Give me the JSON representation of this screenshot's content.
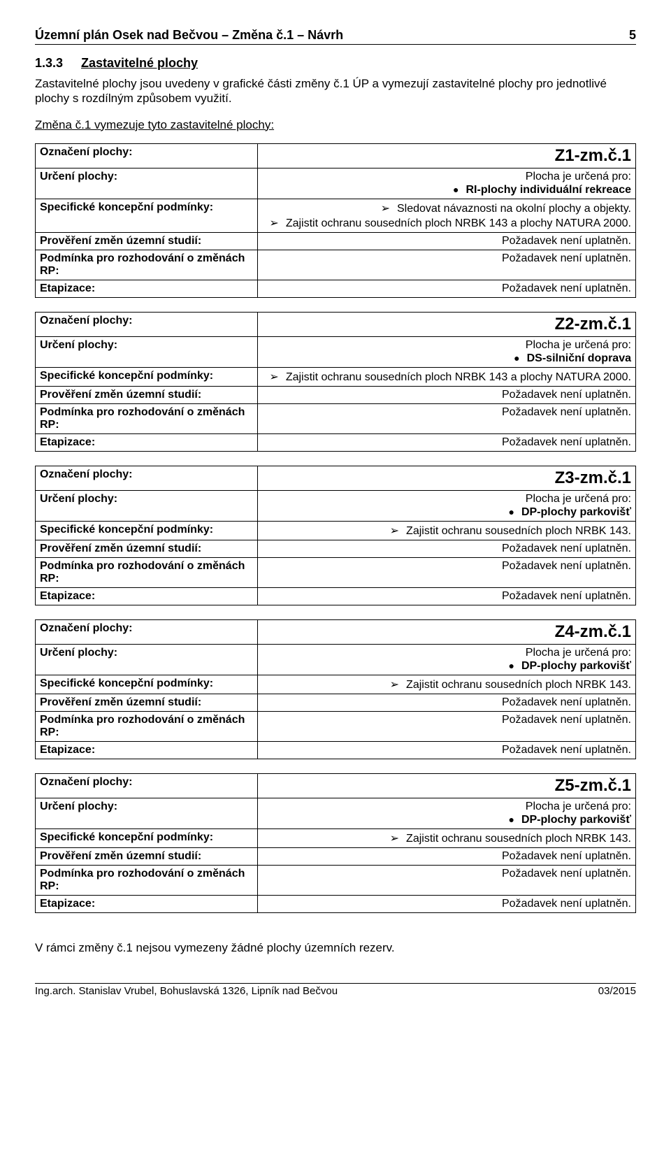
{
  "header": {
    "title": "Územní plán Osek nad Bečvou – Změna č.1 – Návrh",
    "page_number": "5"
  },
  "section": {
    "number": "1.3.3",
    "title": "Zastavitelné plochy"
  },
  "intro": "Zastavitelné plochy jsou uvedeny v grafické části změny č.1 ÚP a vymezují zastavitelné plochy pro jednotlivé plochy s rozdílným způsobem využití.",
  "subheading": "Změna č.1 vymezuje tyto zastavitelné plochy:",
  "plots": [
    {
      "code": "Z1-zm.č.1",
      "designation_label": "Označení plochy:",
      "use_label": "Určení plochy:",
      "use_intro": "Plocha je určená pro:",
      "use_bullets": [
        "RI-plochy individuální rekreace"
      ],
      "conditions_label": "Specifické koncepční podmínky:",
      "condition_arrows": [
        "Sledovat návaznosti na okolní plochy a objekty.",
        "Zajistit ochranu sousedních ploch NRBK 143 a plochy NATURA 2000."
      ],
      "study_label": "Prověření změn územní studií:",
      "study_value": "Požadavek není uplatněn.",
      "rp_label": "Podmínka pro rozhodování o změnách RP:",
      "rp_value": "Požadavek není uplatněn.",
      "phasing_label": "Etapizace:",
      "phasing_value": "Požadavek není uplatněn."
    },
    {
      "code": "Z2-zm.č.1",
      "designation_label": "Označení plochy:",
      "use_label": "Určení plochy:",
      "use_intro": "Plocha je určená pro:",
      "use_bullets": [
        "DS-silniční doprava"
      ],
      "conditions_label": "Specifické koncepční podmínky:",
      "condition_arrows": [
        "Zajistit ochranu sousedních ploch NRBK 143 a plochy NATURA 2000."
      ],
      "study_label": "Prověření změn územní studií:",
      "study_value": "Požadavek není uplatněn.",
      "rp_label": "Podmínka pro rozhodování o změnách RP:",
      "rp_value": "Požadavek není uplatněn.",
      "phasing_label": "Etapizace:",
      "phasing_value": "Požadavek není uplatněn."
    },
    {
      "code": "Z3-zm.č.1",
      "designation_label": "Označení plochy:",
      "use_label": "Určení plochy:",
      "use_intro": "Plocha je určená pro:",
      "use_bullets": [
        "DP-plochy parkovišť"
      ],
      "conditions_label": "Specifické koncepční podmínky:",
      "condition_arrows": [
        "Zajistit ochranu sousedních ploch NRBK 143."
      ],
      "study_label": "Prověření změn územní studií:",
      "study_value": "Požadavek není uplatněn.",
      "rp_label": "Podmínka pro rozhodování o změnách RP:",
      "rp_value": "Požadavek není uplatněn.",
      "phasing_label": "Etapizace:",
      "phasing_value": "Požadavek není uplatněn."
    },
    {
      "code": "Z4-zm.č.1",
      "designation_label": "Označení plochy:",
      "use_label": "Určení plochy:",
      "use_intro": "Plocha je určená pro:",
      "use_bullets": [
        "DP-plochy parkovišť"
      ],
      "conditions_label": "Specifické koncepční podmínky:",
      "condition_arrows": [
        "Zajistit ochranu sousedních ploch NRBK 143."
      ],
      "study_label": "Prověření změn územní studií:",
      "study_value": "Požadavek není uplatněn.",
      "rp_label": "Podmínka pro rozhodování o změnách RP:",
      "rp_value": "Požadavek není uplatněn.",
      "phasing_label": "Etapizace:",
      "phasing_value": "Požadavek není uplatněn."
    },
    {
      "code": "Z5-zm.č.1",
      "designation_label": "Označení plochy:",
      "use_label": "Určení plochy:",
      "use_intro": "Plocha je určená pro:",
      "use_bullets": [
        "DP-plochy parkovišť"
      ],
      "conditions_label": "Specifické koncepční podmínky:",
      "condition_arrows": [
        "Zajistit ochranu sousedních ploch NRBK 143."
      ],
      "study_label": "Prověření změn územní studií:",
      "study_value": "Požadavek není uplatněn.",
      "rp_label": "Podmínka pro rozhodování o změnách RP:",
      "rp_value": "Požadavek není uplatněn.",
      "phasing_label": "Etapizace:",
      "phasing_value": "Požadavek není uplatněn."
    }
  ],
  "bottom_text": "V rámci změny č.1 nejsou vymezeny žádné plochy územních rezerv.",
  "footer": {
    "left": "Ing.arch. Stanislav Vrubel, Bohuslavská 1326, Lipník nad Bečvou",
    "right": "03/2015"
  }
}
